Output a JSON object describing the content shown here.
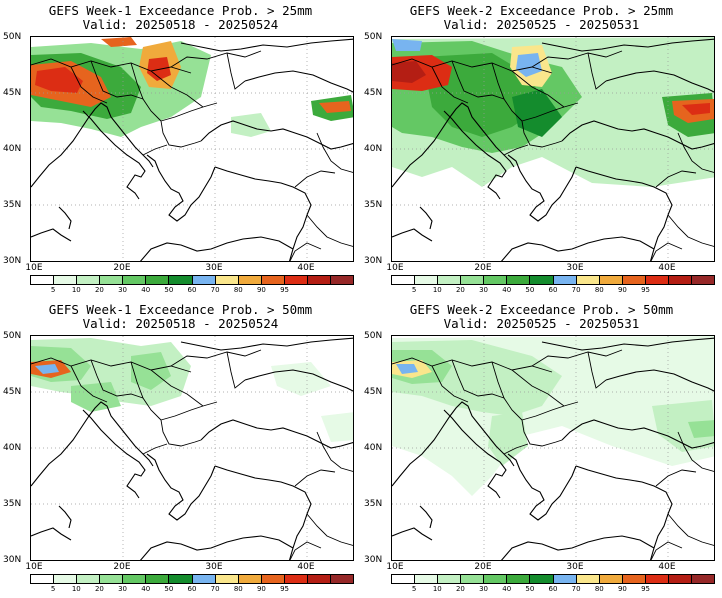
{
  "colorbar": {
    "colors": [
      "#ffffff",
      "#e6fae6",
      "#c3f0c3",
      "#96e196",
      "#64c864",
      "#3caa3c",
      "#148c2d",
      "#78b4f0",
      "#fae68c",
      "#f0aa3c",
      "#e6641e",
      "#dc2d14",
      "#b41e14",
      "#962828"
    ],
    "labels": [
      "5",
      "10",
      "20",
      "30",
      "40",
      "50",
      "60",
      "70",
      "80",
      "90",
      "95"
    ]
  },
  "axes": {
    "lat_labels": [
      "50N",
      "45N",
      "40N",
      "35N",
      "30N"
    ],
    "lon_labels": [
      "10E",
      "20E",
      "30E",
      "40E"
    ]
  },
  "panels": [
    {
      "title_line1": "GEFS Week-1 Exceedance Prob. > 25mm",
      "title_line2": "Valid: 20250518 - 20250524"
    },
    {
      "title_line1": "GEFS Week-2 Exceedance Prob. > 25mm",
      "title_line2": "Valid: 20250525 - 20250531"
    },
    {
      "title_line1": "GEFS Week-1 Exceedance Prob. > 50mm",
      "title_line2": "Valid: 20250518 - 20250524"
    },
    {
      "title_line1": "GEFS Week-2 Exceedance Prob. > 50mm",
      "title_line2": "Valid: 20250525 - 20250531"
    }
  ]
}
